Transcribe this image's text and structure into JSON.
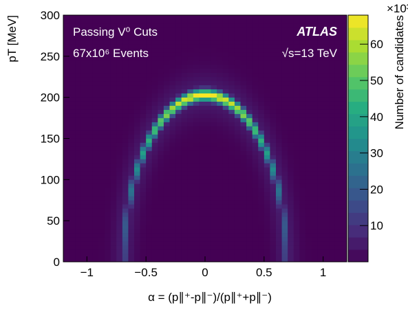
{
  "chart_data": {
    "type": "heatmap",
    "x": {
      "title": "α = (p∥⁺-p∥⁻)/(p∥⁺+p∥⁻)",
      "ticks": [
        "−1",
        "−0.5",
        "0",
        "0.5",
        "1"
      ],
      "tick_values": [
        -1,
        -0.5,
        0,
        0.5,
        1
      ],
      "range": [
        -1.2,
        1.2
      ]
    },
    "y": {
      "title": "pT [MeV]",
      "ticks": [
        "0",
        "50",
        "100",
        "150",
        "200",
        "250",
        "300"
      ],
      "tick_values": [
        0,
        50,
        100,
        150,
        200,
        250,
        300
      ],
      "range": [
        0,
        300
      ]
    },
    "z": {
      "title": "Number of candidates",
      "multiplier": "×10³",
      "ticks": [
        "10",
        "20",
        "30",
        "40",
        "50",
        "60"
      ],
      "tick_values": [
        10,
        20,
        30,
        40,
        50,
        60
      ],
      "range": [
        0,
        68
      ]
    },
    "annotations": {
      "selection": "Passing V⁰ Cuts",
      "events": "67x10⁶ Events",
      "experiment": "ATLAS",
      "energy": "√s=13 TeV"
    },
    "distribution": {
      "shape": "Armenteros–Podolanski arc",
      "arc_center_alpha": 0,
      "arc_radius_alpha": 0.69,
      "arc_peak_pt_mev": 203,
      "peak_candidates_thousands": 68,
      "ridge_width_pt_mev": 7
    },
    "colormap": "viridis",
    "grid": false
  }
}
